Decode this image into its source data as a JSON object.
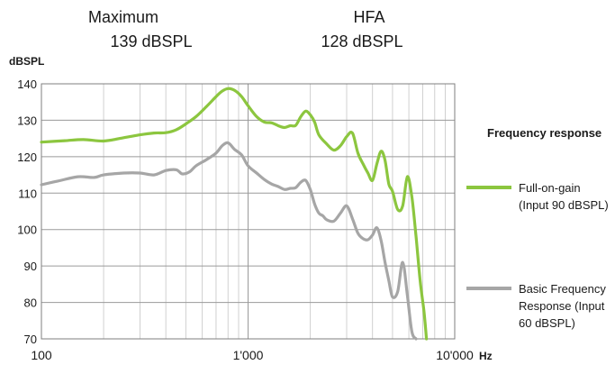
{
  "header": {
    "maximum_label": "Maximum",
    "maximum_value": "139 dBSPL",
    "hfa_label": "HFA",
    "hfa_value": "128 dBSPL"
  },
  "chart_data": {
    "type": "line",
    "ylabel": "dBSPL",
    "xlabel": "Hz",
    "xscale": "log",
    "xlim": [
      100,
      10000
    ],
    "ylim": [
      70,
      140
    ],
    "yticks": [
      "140",
      "130",
      "120",
      "110",
      "100",
      "90",
      "80",
      "70"
    ],
    "xticks": [
      "100",
      "1'000",
      "10'000"
    ],
    "xtick_values": [
      100,
      1000,
      10000
    ],
    "grid": "on",
    "legend_title": "Frequency response",
    "legend_position": "right",
    "series": [
      {
        "name": "Full-on-gain (Input 90 dBSPL)",
        "legend_lines": [
          "Full-on-gain",
          "(Input 90 dBSPL)"
        ],
        "color": "#8cc63f",
        "x": [
          100,
          130,
          160,
          200,
          250,
          300,
          350,
          400,
          450,
          500,
          560,
          630,
          700,
          750,
          800,
          860,
          930,
          1000,
          1100,
          1200,
          1300,
          1400,
          1500,
          1600,
          1700,
          1800,
          1900,
          2000,
          2100,
          2200,
          2400,
          2600,
          2800,
          3000,
          3200,
          3400,
          3600,
          3800,
          4000,
          4200,
          4400,
          4600,
          4800,
          5000,
          5300,
          5600,
          5900,
          6200,
          6500,
          6800,
          7100,
          7300
        ],
        "values": [
          124,
          124.4,
          124.7,
          124.3,
          125.2,
          126,
          126.5,
          126.6,
          127.4,
          129,
          131,
          133.8,
          136.5,
          138,
          138.7,
          138.2,
          136.5,
          134,
          131,
          129.5,
          129.3,
          128.5,
          128,
          128.5,
          128.6,
          131,
          132.5,
          131.5,
          129.5,
          126,
          123.5,
          121.8,
          123,
          125.5,
          126.5,
          121,
          118,
          115.5,
          113.5,
          118,
          121.5,
          119,
          112.5,
          110.5,
          105.5,
          106.5,
          114.5,
          109,
          98,
          86,
          77.5,
          70
        ]
      },
      {
        "name": "Basic Frequency Response (Input 60 dBSPL)",
        "legend_lines": [
          "Basic Frequency",
          "Response (Input",
          "60 dBSPL)"
        ],
        "color": "#a6a6a6",
        "x": [
          100,
          120,
          150,
          180,
          200,
          250,
          300,
          350,
          400,
          450,
          480,
          520,
          560,
          630,
          700,
          750,
          800,
          860,
          930,
          1000,
          1100,
          1200,
          1300,
          1400,
          1500,
          1600,
          1700,
          1800,
          1900,
          2000,
          2100,
          2200,
          2300,
          2400,
          2600,
          2800,
          3000,
          3200,
          3400,
          3600,
          3800,
          4000,
          4200,
          4400,
          4600,
          4800,
          5000,
          5300,
          5600,
          5900,
          6200,
          6500
        ],
        "values": [
          112.3,
          113.3,
          114.5,
          114.3,
          115,
          115.5,
          115.5,
          115,
          116.2,
          116.4,
          115.3,
          115.8,
          117.5,
          119.2,
          121,
          123,
          123.8,
          122,
          120.5,
          117.5,
          115.5,
          113.7,
          112.5,
          111.8,
          111,
          111.3,
          111.5,
          113,
          113.5,
          111,
          107,
          104.5,
          103.8,
          102.7,
          102.3,
          104.5,
          106.5,
          103,
          99,
          97.5,
          97.2,
          98.5,
          100.5,
          97,
          91,
          86,
          81.5,
          83,
          91,
          82,
          72,
          70
        ]
      }
    ]
  }
}
